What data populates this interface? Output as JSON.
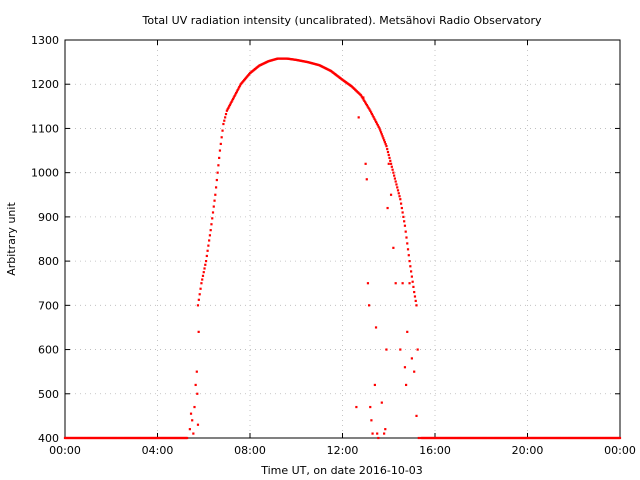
{
  "chart_data": {
    "type": "scatter",
    "title": "Total UV radiation intensity (uncalibrated). Metsähovi Radio Observatory",
    "xlabel": "Time UT, on date 2016-10-03",
    "ylabel": "Arbitrary unit",
    "xlim": [
      "00:00",
      "24:00"
    ],
    "ylim": [
      400,
      1300
    ],
    "x_unit": "hours UT",
    "x_ticks": [
      {
        "value": 0,
        "label": "00:00"
      },
      {
        "value": 4,
        "label": "04:00"
      },
      {
        "value": 8,
        "label": "08:00"
      },
      {
        "value": 12,
        "label": "12:00"
      },
      {
        "value": 16,
        "label": "16:00"
      },
      {
        "value": 20,
        "label": "20:00"
      },
      {
        "value": 24,
        "label": "00:00"
      }
    ],
    "y_ticks": [
      400,
      500,
      600,
      700,
      800,
      900,
      1000,
      1100,
      1200,
      1300
    ],
    "grid": true,
    "marker_color": "#ff0000",
    "series": [
      {
        "baseline": {
          "y": 400,
          "x_ranges": [
            [
              0,
              5.3
            ],
            [
              15.4,
              24
            ]
          ]
        },
        "curve": [
          [
            5.75,
            700
          ],
          [
            5.9,
            750
          ],
          [
            6.1,
            800
          ],
          [
            6.3,
            870
          ],
          [
            6.5,
            950
          ],
          [
            6.7,
            1050
          ],
          [
            6.85,
            1110
          ],
          [
            7.0,
            1140
          ],
          [
            7.3,
            1170
          ],
          [
            7.6,
            1200
          ],
          [
            8.0,
            1225
          ],
          [
            8.4,
            1242
          ],
          [
            8.8,
            1252
          ],
          [
            9.2,
            1258
          ],
          [
            9.6,
            1258
          ],
          [
            10.0,
            1255
          ],
          [
            10.5,
            1250
          ],
          [
            11.0,
            1243
          ],
          [
            11.5,
            1230
          ],
          [
            12.0,
            1210
          ],
          [
            12.4,
            1195
          ],
          [
            12.8,
            1175
          ],
          [
            13.2,
            1140
          ],
          [
            13.6,
            1100
          ],
          [
            13.9,
            1060
          ],
          [
            14.1,
            1020
          ],
          [
            14.3,
            980
          ],
          [
            14.5,
            940
          ],
          [
            14.7,
            880
          ],
          [
            14.9,
            800
          ],
          [
            15.1,
            730
          ],
          [
            15.2,
            700
          ]
        ],
        "scatter": [
          [
            5.4,
            420
          ],
          [
            5.45,
            455
          ],
          [
            5.5,
            440
          ],
          [
            5.55,
            410
          ],
          [
            5.6,
            470
          ],
          [
            5.65,
            520
          ],
          [
            5.7,
            550
          ],
          [
            5.72,
            500
          ],
          [
            5.75,
            430
          ],
          [
            5.78,
            640
          ],
          [
            12.6,
            470
          ],
          [
            12.7,
            1125
          ],
          [
            12.9,
            1170
          ],
          [
            13.0,
            1020
          ],
          [
            13.05,
            985
          ],
          [
            13.1,
            750
          ],
          [
            13.15,
            700
          ],
          [
            13.2,
            470
          ],
          [
            13.25,
            440
          ],
          [
            13.3,
            410
          ],
          [
            13.4,
            520
          ],
          [
            13.45,
            650
          ],
          [
            13.5,
            410
          ],
          [
            13.55,
            400
          ],
          [
            13.7,
            480
          ],
          [
            13.8,
            410
          ],
          [
            13.85,
            420
          ],
          [
            13.9,
            600
          ],
          [
            13.95,
            920
          ],
          [
            14.0,
            1020
          ],
          [
            14.1,
            950
          ],
          [
            14.2,
            830
          ],
          [
            14.3,
            750
          ],
          [
            14.5,
            600
          ],
          [
            14.6,
            750
          ],
          [
            14.7,
            560
          ],
          [
            14.75,
            520
          ],
          [
            14.8,
            640
          ],
          [
            14.9,
            750
          ],
          [
            15.0,
            580
          ],
          [
            15.1,
            550
          ],
          [
            15.2,
            450
          ],
          [
            15.25,
            600
          ],
          [
            15.3,
            400
          ]
        ]
      }
    ]
  }
}
